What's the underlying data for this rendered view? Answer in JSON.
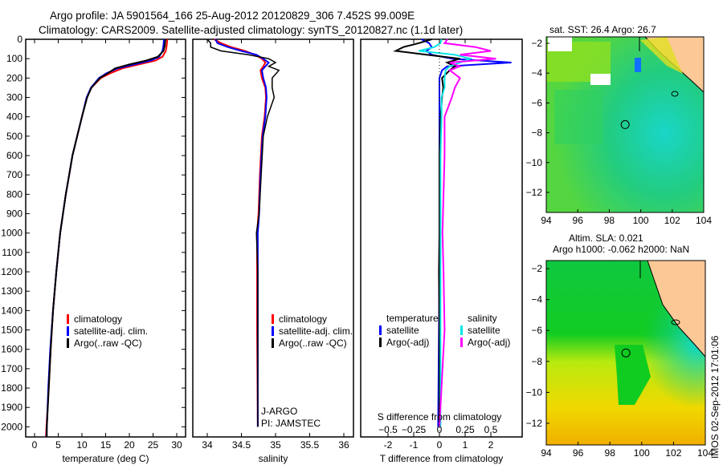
{
  "title": {
    "line1": "Argo profile: JA 5901564_166 25-Aug-2012 20120829_306 7.452S 99.009E",
    "line2": "Climatology: CARS2009. Satellite-adjusted climatology: synTS_20120827.nc (1.1d later)"
  },
  "colors": {
    "climatology": "#ff0000",
    "satellite": "#0000ff",
    "argo": "#000000",
    "sal_satellite": "#00e5e5",
    "sal_argo": "#ff00ff",
    "land": "#fcc896"
  },
  "chart_data": [
    {
      "type": "line",
      "id": "temperature",
      "xlabel": "temperature (deg C)",
      "ylabel": "depth",
      "xlim": [
        -2,
        32
      ],
      "ylim": [
        2050,
        0
      ],
      "xticks": [
        0,
        5,
        10,
        15,
        20,
        25,
        30
      ],
      "yticks": [
        0,
        100,
        200,
        300,
        400,
        500,
        600,
        700,
        800,
        900,
        1000,
        1100,
        1200,
        1300,
        1400,
        1500,
        1600,
        1700,
        1800,
        1900,
        2000
      ],
      "legend": [
        "climatology",
        "satellite-adj. clim.",
        "Argo(..raw -QC)"
      ],
      "depth": [
        0,
        30,
        60,
        90,
        110,
        130,
        150,
        175,
        200,
        250,
        300,
        400,
        500,
        600,
        700,
        800,
        900,
        1000,
        1200,
        1400,
        1600,
        1800,
        2000,
        2050
      ],
      "series": [
        {
          "name": "climatology",
          "values": [
            28.0,
            27.9,
            27.7,
            27.0,
            25.5,
            22.0,
            18.5,
            16.0,
            14.0,
            12.0,
            11.0,
            10.0,
            9.0,
            8.0,
            7.3,
            6.6,
            6.0,
            5.4,
            4.6,
            3.9,
            3.4,
            3.0,
            2.5,
            2.4
          ]
        },
        {
          "name": "satellite-adj. clim.",
          "values": [
            27.3,
            27.2,
            27.0,
            26.3,
            24.5,
            21.0,
            17.5,
            15.2,
            13.6,
            11.9,
            11.0,
            10.0,
            9.0,
            8.0,
            7.3,
            6.6,
            6.0,
            5.4,
            4.6,
            3.9,
            3.3,
            2.9,
            2.6,
            2.5
          ]
        },
        {
          "name": "Argo(..raw -QC)",
          "values": [
            27.6,
            27.5,
            27.2,
            26.0,
            23.5,
            20.0,
            17.0,
            15.5,
            13.8,
            12.0,
            11.1,
            10.0,
            9.0,
            8.0,
            7.3,
            6.6,
            6.0,
            5.4,
            4.6,
            3.9,
            3.4,
            3.0,
            2.6,
            2.6
          ]
        }
      ]
    },
    {
      "type": "line",
      "id": "salinity",
      "xlabel": "salinity",
      "xlim": [
        33.8,
        36.1
      ],
      "ylim": [
        2050,
        0
      ],
      "xticks": [
        34,
        34.5,
        35,
        35.5,
        36
      ],
      "xtick_labels": [
        "34",
        "34.5",
        "35",
        "35.5",
        "36"
      ],
      "legend": [
        "climatology",
        "satellite-adj. clim.",
        "Argo(..raw -QC)"
      ],
      "annotation": [
        "J-ARGO",
        "PI: JAMSTEC"
      ],
      "depth": [
        0,
        20,
        40,
        60,
        80,
        100,
        120,
        140,
        160,
        200,
        250,
        300,
        400,
        500,
        700,
        900,
        1000,
        1200,
        1500,
        2000
      ],
      "series": [
        {
          "name": "climatology",
          "values": [
            34.1,
            34.2,
            34.35,
            34.55,
            34.7,
            34.8,
            34.85,
            34.82,
            34.78,
            34.8,
            34.85,
            34.86,
            34.84,
            34.8,
            34.77,
            34.75,
            34.73,
            34.73,
            34.73,
            34.74
          ]
        },
        {
          "name": "satellite-adj. clim.",
          "values": [
            34.12,
            34.15,
            34.3,
            34.5,
            34.72,
            34.82,
            34.9,
            34.85,
            34.8,
            34.82,
            34.86,
            34.87,
            34.85,
            34.81,
            34.78,
            34.76,
            34.74,
            34.74,
            34.74,
            34.74
          ]
        },
        {
          "name": "Argo(..raw -QC)",
          "values": [
            34.0,
            34.05,
            34.05,
            34.2,
            34.6,
            34.9,
            35.0,
            34.9,
            35.05,
            34.95,
            34.95,
            34.98,
            34.88,
            34.82,
            34.79,
            34.76,
            34.72,
            34.74,
            34.74,
            34.74
          ]
        }
      ]
    },
    {
      "type": "line",
      "id": "difference",
      "xlabel": "T difference from climatology",
      "x2label": "S difference from climatology",
      "xlim": [
        -3,
        3.2
      ],
      "ylim": [
        2050,
        0
      ],
      "xticks": [
        -2,
        -1,
        0,
        1,
        2
      ],
      "x2ticks": [
        -0.5,
        -0.25,
        0,
        0.25,
        0.5
      ],
      "legend_temperature_title": "temperature",
      "legend_salinity_title": "salinity",
      "legend_temperature": [
        "satellite",
        "Argo(-adj)"
      ],
      "legend_salinity": [
        "satellite",
        "Argo(-adj)"
      ],
      "depth": [
        0,
        20,
        40,
        60,
        80,
        100,
        120,
        140,
        160,
        200,
        250,
        300,
        400,
        600,
        800,
        1000,
        1200,
        1500,
        2000
      ],
      "series": [
        {
          "name": "T satellite",
          "values": [
            -0.7,
            -0.4,
            -0.3,
            -0.5,
            -0.3,
            0.5,
            2.8,
            0.3,
            0.1,
            0,
            0,
            0,
            0,
            0,
            0,
            0,
            0,
            -0.02,
            -0.05
          ]
        },
        {
          "name": "T Argo(-adj)",
          "values": [
            -0.3,
            -0.8,
            -1.4,
            -1.7,
            -0.5,
            0.8,
            0.3,
            0.6,
            0.4,
            0.1,
            0.15,
            0.1,
            0.05,
            0,
            0,
            0,
            -0.02,
            0,
            0
          ]
        },
        {
          "name": "S satellite",
          "values": [
            0.02,
            0.01,
            -0.05,
            -0.2,
            0.15,
            0.3,
            0.2,
            0.1,
            0.06,
            0.05,
            0.05,
            0.02,
            0.02,
            0.01,
            0.01,
            0.01,
            0.01,
            0.01,
            0.01
          ]
        },
        {
          "name": "S Argo(-adj)",
          "values": [
            0.08,
            0.05,
            0.35,
            0.5,
            0.2,
            0.55,
            0.1,
            0.2,
            0.1,
            0.2,
            0.15,
            0.12,
            0.05,
            0.05,
            0.04,
            0.03,
            0.04,
            0.05,
            0.0
          ]
        }
      ]
    },
    {
      "type": "heatmap",
      "id": "sst-map",
      "title": "sat. SST: 26.4 Argo: 26.7",
      "xticks": [
        94,
        96,
        98,
        100,
        102,
        104
      ],
      "yticks": [
        -2,
        -4,
        -6,
        -8,
        -10,
        -12
      ],
      "marker": {
        "lon": 99.009,
        "lat": -7.452
      }
    },
    {
      "type": "heatmap",
      "id": "sla-map",
      "title": "Altim. SLA: 0.021",
      "subtitle": "Argo h1000: -0.062 h2000: NaN",
      "xticks": [
        94,
        96,
        98,
        100,
        102,
        104
      ],
      "yticks": [
        -2,
        -4,
        -6,
        -8,
        -10,
        -12
      ],
      "marker": {
        "lon": 99.009,
        "lat": -7.452
      }
    }
  ],
  "footer": "IMOS 02-Sep-2012 17:01:06"
}
